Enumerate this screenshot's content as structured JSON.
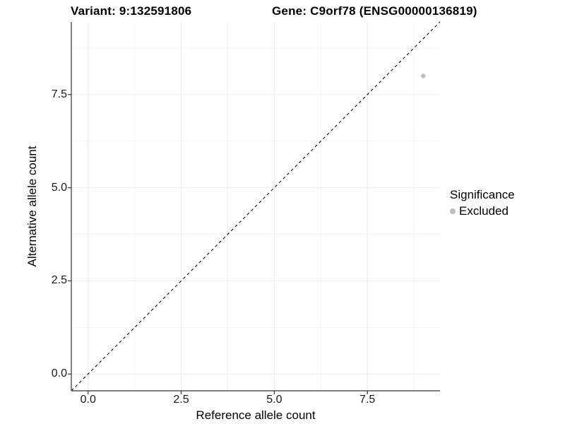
{
  "header": {
    "variant_title": "Variant: 9:132591806",
    "gene_title": "Gene: C9orf78 (ENSG00000136819)"
  },
  "axes": {
    "x_label": "Reference allele count",
    "y_label": "Alternative allele count"
  },
  "legend": {
    "title": "Significance",
    "items": [
      {
        "label": "Excluded",
        "color": "#bdbdbd"
      }
    ]
  },
  "chart_data": {
    "type": "scatter",
    "title_left": "Variant: 9:132591806",
    "title_right": "Gene: C9orf78 (ENSG00000136819)",
    "xlabel": "Reference allele count",
    "ylabel": "Alternative allele count",
    "xlim": [
      -0.45,
      9.45
    ],
    "ylim": [
      -0.45,
      9.45
    ],
    "x_ticks": {
      "values": [
        0,
        2.5,
        5,
        7.5
      ],
      "labels": [
        "0.0",
        "2.5",
        "5.0",
        "7.5"
      ]
    },
    "y_ticks": {
      "values": [
        0,
        2.5,
        5,
        7.5
      ],
      "labels": [
        "0.0",
        "2.5",
        "5.0",
        "7.5"
      ]
    },
    "minor_grid": [
      1.25,
      3.75,
      6.25,
      8.75
    ],
    "grid": "major and minor, light gray, white background",
    "legend_position": "right",
    "identity_line": {
      "style": "dashed",
      "color": "#000000",
      "from": [
        -0.45,
        -0.45
      ],
      "to": [
        9.45,
        9.45
      ]
    },
    "series": [
      {
        "name": "Excluded",
        "color": "#bebebe",
        "point_radius": 3.2,
        "points": [
          [
            9,
            8
          ]
        ]
      }
    ]
  },
  "colors": {
    "background": "#ffffff",
    "axis_line": "#333333",
    "grid_major": "#ececec",
    "grid_minor": "#f4f4f4",
    "tick_text": "#1a1a1a",
    "point": "#bebebe"
  }
}
